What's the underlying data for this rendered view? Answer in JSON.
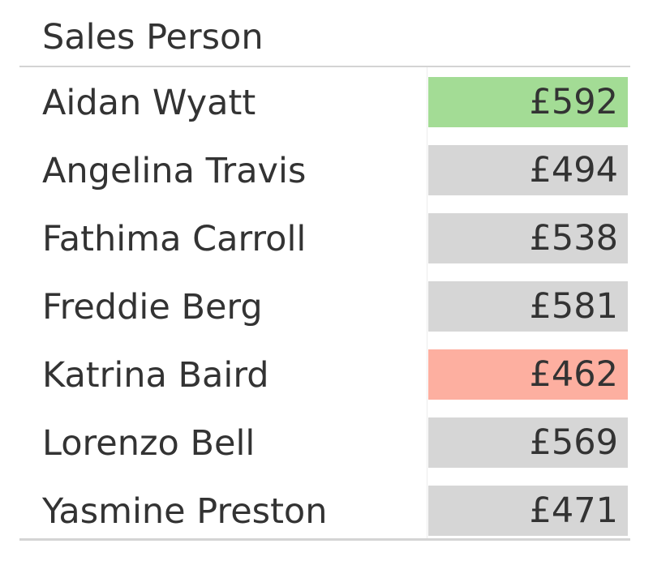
{
  "header": {
    "column_label": "Sales Person"
  },
  "colors": {
    "highest": "#a3dc95",
    "lowest": "#fdafa0",
    "default": "#d6d6d6",
    "text": "#333333"
  },
  "chart_data": {
    "type": "table",
    "columns": [
      "Sales Person",
      ""
    ],
    "rows": [
      {
        "name": "Aidan Wyatt",
        "value": 592,
        "display": "£592",
        "highlight": "highest"
      },
      {
        "name": "Angelina Travis",
        "value": 494,
        "display": "£494",
        "highlight": "default"
      },
      {
        "name": "Fathima Carroll",
        "value": 538,
        "display": "£538",
        "highlight": "default"
      },
      {
        "name": "Freddie Berg",
        "value": 581,
        "display": "£581",
        "highlight": "default"
      },
      {
        "name": "Katrina Baird",
        "value": 462,
        "display": "£462",
        "highlight": "lowest"
      },
      {
        "name": "Lorenzo Bell",
        "value": 569,
        "display": "£569",
        "highlight": "default"
      },
      {
        "name": "Yasmine Preston",
        "value": 471,
        "display": "£471",
        "highlight": "default"
      }
    ]
  }
}
